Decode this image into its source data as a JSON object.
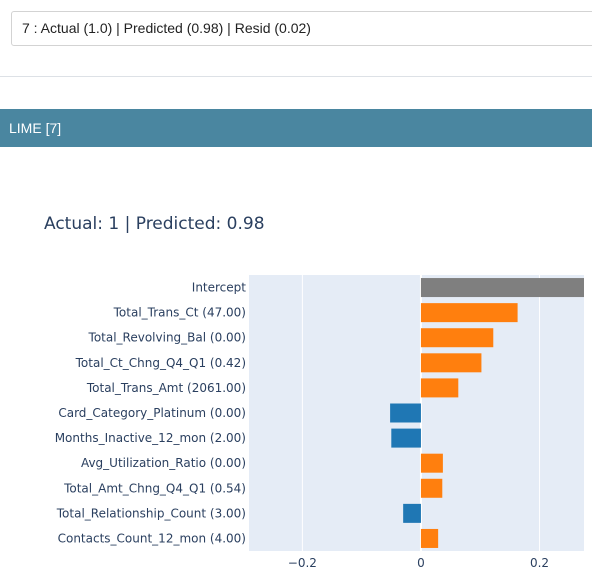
{
  "selector": {
    "value": "7 : Actual (1.0) | Predicted (0.98) | Resid (0.02)"
  },
  "panel": {
    "title": "LIME [7]"
  },
  "colors": {
    "positive": "#ff7f0e",
    "negative": "#1f77b4",
    "intercept": "#7f7f7f",
    "plot_bg": "#e5ecf6",
    "grid": "#ffffff"
  },
  "chart_data": {
    "type": "bar",
    "orientation": "horizontal",
    "title": "Actual: 1 | Predicted: 0.98",
    "xlim": [
      -0.29,
      0.275
    ],
    "xticks": [
      -0.2,
      0,
      0.2
    ],
    "xtick_labels": [
      "−0.2",
      "0",
      "0.2"
    ],
    "grid": true,
    "categories": [
      "Intercept",
      "Total_Trans_Ct (47.00)",
      "Total_Revolving_Bal (0.00)",
      "Total_Ct_Chng_Q4_Q1 (0.42)",
      "Total_Trans_Amt (2061.00)",
      "Card_Category_Platinum (0.00)",
      "Months_Inactive_12_mon (2.00)",
      "Avg_Utilization_Ratio (0.00)",
      "Total_Amt_Chng_Q4_Q1 (0.54)",
      "Total_Relationship_Count (3.00)",
      "Contacts_Count_12_mon (4.00)"
    ],
    "values": [
      0.275,
      0.163,
      0.122,
      0.102,
      0.063,
      -0.052,
      -0.05,
      0.037,
      0.036,
      -0.03,
      0.029
    ]
  }
}
